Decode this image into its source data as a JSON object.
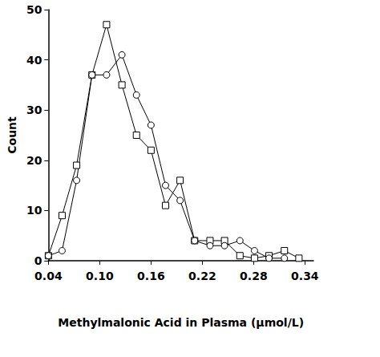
{
  "chart_data": {
    "type": "line",
    "x_label": "Methylmalonic Acid in Plasma (µmol/L)",
    "y_label": "Count",
    "x": [
      0.04,
      0.056,
      0.073,
      0.091,
      0.108,
      0.126,
      0.143,
      0.16,
      0.177,
      0.194,
      0.211,
      0.229,
      0.246,
      0.264,
      0.281,
      0.298,
      0.316,
      0.333
    ],
    "series": [
      {
        "color": "#000000",
        "marker": "square",
        "line_style": "solid",
        "values": [
          1,
          9,
          19,
          37,
          47,
          35,
          25,
          22,
          11,
          16,
          4,
          4,
          4,
          1,
          0.5,
          1,
          2,
          0.5
        ]
      },
      {
        "color": "#000000",
        "marker": "circle",
        "line_style": "solid",
        "values": [
          1,
          2,
          16,
          37,
          37,
          41,
          33,
          27,
          15,
          12,
          4,
          3,
          3,
          4,
          2,
          0.5,
          0.5,
          null
        ]
      }
    ],
    "xlim": [
      0.04,
      0.35
    ],
    "xticks": [
      0.04,
      {
        "value": 0.1,
        "label": "0.10"
      },
      0.16,
      0.22,
      0.28,
      0.34
    ],
    "ylim": [
      0,
      50
    ],
    "yticks": [
      0,
      10,
      20,
      30,
      40,
      50
    ],
    "grid": false
  }
}
